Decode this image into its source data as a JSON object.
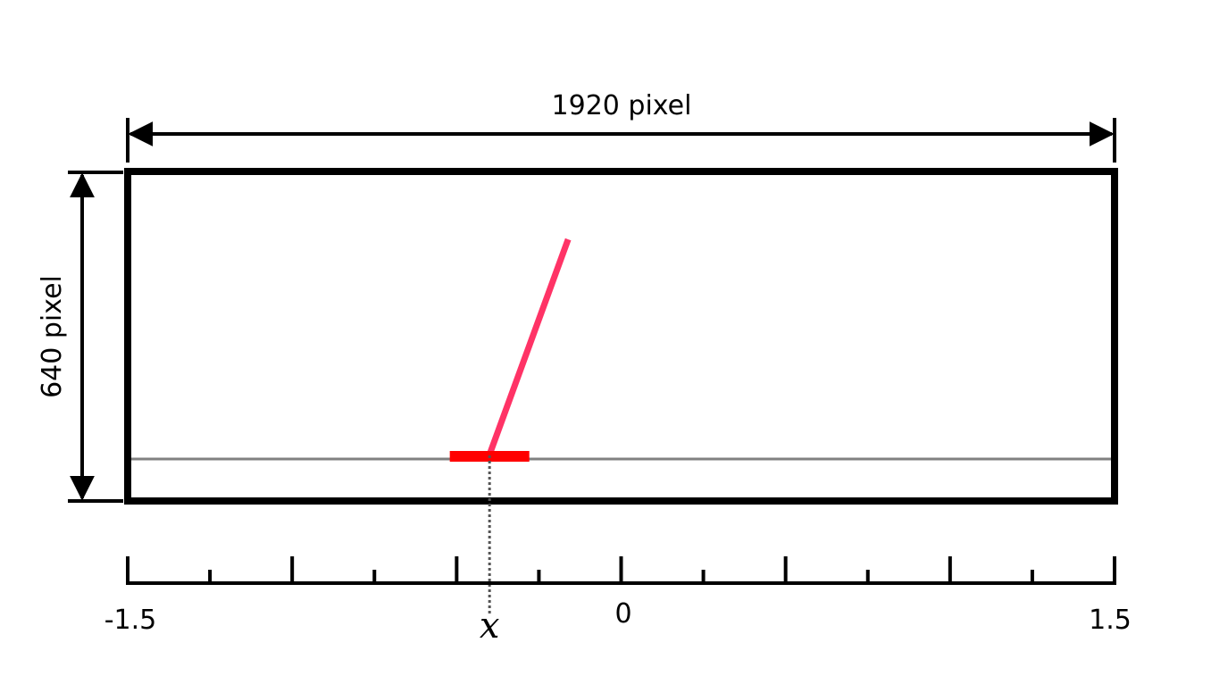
{
  "width_label": "1920 pixel",
  "height_label": "640 pixel",
  "axis": {
    "min_label": "-1.5",
    "zero_label": "0",
    "max_label": "1.5",
    "min": -1.5,
    "max": 1.5,
    "major_step": 0.5,
    "minor_step": 0.25
  },
  "cart_position_label": "x",
  "cart_position": -0.4,
  "colors": {
    "frame": "#000000",
    "track": "#808080",
    "cart": "#ff0000",
    "pole": "#ff3366",
    "marker_line": "#555555"
  }
}
